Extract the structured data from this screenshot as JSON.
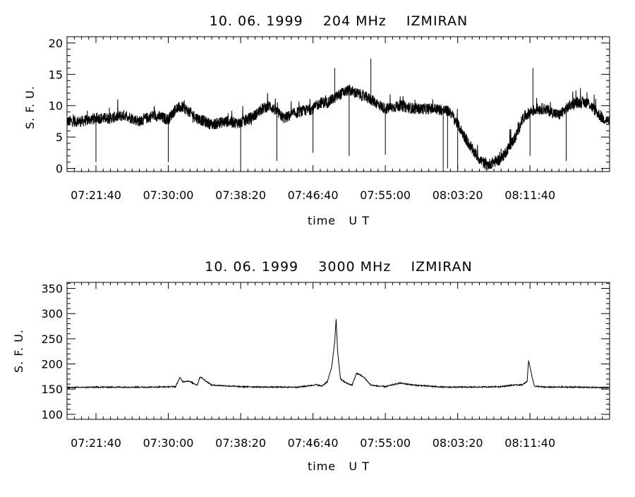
{
  "chart_data": [
    {
      "type": "line",
      "title": "10. 06. 1999    204 MHz    IZMIRAN",
      "xlabel": "time   U T",
      "ylabel": "S. F. U.",
      "x_tick_labels": [
        "07:21:40",
        "07:30:00",
        "07:38:20",
        "07:46:40",
        "07:55:00",
        "08:03:20",
        "08:11:40"
      ],
      "x_tick_seconds": [
        0,
        500,
        1000,
        1500,
        2000,
        2500,
        3000
      ],
      "xlim_seconds": [
        -200,
        3550
      ],
      "y_ticks": [
        0,
        5,
        10,
        15,
        20
      ],
      "y_tick_labels": [
        "0",
        "5",
        "10",
        "15",
        "20"
      ],
      "ylim": [
        -0.5,
        21
      ],
      "line_color": "#000000",
      "grid": false,
      "series": [
        {
          "t": [
            -200,
            -100,
            0,
            100,
            200,
            300,
            400,
            500,
            550,
            600,
            700,
            800,
            900,
            1000,
            1100,
            1150,
            1200,
            1300,
            1400,
            1500,
            1550,
            1600,
            1700,
            1750,
            1800,
            1900,
            2000,
            2100,
            2200,
            2250,
            2300,
            2350,
            2400,
            2450,
            2500,
            2600,
            2650,
            2700,
            2800,
            2900,
            2950,
            3000,
            3050,
            3100,
            3200,
            3300,
            3400,
            3500,
            3550
          ],
          "values": [
            7.5,
            7.5,
            8,
            8,
            8.5,
            7.5,
            8.5,
            7.8,
            9.5,
            9.8,
            8,
            7,
            7.5,
            7.2,
            8.5,
            9.5,
            10,
            8,
            9,
            9.5,
            10.5,
            10.5,
            12,
            12.5,
            12,
            11,
            9.5,
            10,
            9.5,
            9.5,
            9.5,
            9.5,
            9.3,
            9,
            7,
            3,
            1.5,
            0.5,
            1.5,
            5,
            8,
            9,
            9.5,
            9.5,
            8.5,
            10.5,
            10.5,
            8,
            7.5
          ]
        }
      ],
      "spikes": [
        {
          "t": 0,
          "value": 1
        },
        {
          "t": 500,
          "value": 1
        },
        {
          "t": 1000,
          "value": 0.5
        },
        {
          "t": 1250,
          "value": 1.2
        },
        {
          "t": 1500,
          "value": 2.5
        },
        {
          "t": 1650,
          "value": 16
        },
        {
          "t": 1750,
          "value": 2
        },
        {
          "t": 1900,
          "value": 17.5
        },
        {
          "t": 2000,
          "value": 2.2
        },
        {
          "t": 2400,
          "value": 0
        },
        {
          "t": 2430,
          "value": 0
        },
        {
          "t": 2500,
          "value": 0
        },
        {
          "t": 2750,
          "value": 1.5
        },
        {
          "t": 3000,
          "value": 2
        },
        {
          "t": 3020,
          "value": 16
        },
        {
          "t": 3250,
          "value": 1.2
        }
      ]
    },
    {
      "type": "line",
      "title": "10. 06. 1999    3000 MHz    IZMIRAN",
      "xlabel": "time   U T",
      "ylabel": "S. F. U.",
      "x_tick_labels": [
        "07:21:40",
        "07:30:00",
        "07:38:20",
        "07:46:40",
        "07:55:00",
        "08:03:20",
        "08:11:40"
      ],
      "x_tick_seconds": [
        0,
        500,
        1000,
        1500,
        2000,
        2500,
        3000
      ],
      "xlim_seconds": [
        -200,
        3550
      ],
      "y_ticks": [
        100,
        150,
        200,
        250,
        300,
        350
      ],
      "y_tick_labels": [
        "100",
        "150",
        "200",
        "250",
        "300",
        "350"
      ],
      "ylim": [
        90,
        362
      ],
      "line_color": "#000000",
      "grid": false,
      "series": [
        {
          "t": [
            -200,
            0,
            200,
            400,
            550,
            580,
            600,
            640,
            700,
            720,
            760,
            800,
            1000,
            1200,
            1400,
            1480,
            1520,
            1560,
            1600,
            1630,
            1650,
            1660,
            1670,
            1690,
            1710,
            1730,
            1770,
            1800,
            1830,
            1860,
            1900,
            1950,
            2000,
            2100,
            2200,
            2400,
            2600,
            2800,
            2880,
            2950,
            2980,
            2990,
            3010,
            3030,
            3100,
            3300,
            3550
          ],
          "values": [
            153,
            154,
            154,
            154,
            155,
            173,
            165,
            166,
            158,
            175,
            166,
            158,
            155,
            154,
            154,
            157,
            159,
            156,
            165,
            195,
            243,
            290,
            225,
            170,
            166,
            162,
            158,
            181,
            178,
            171,
            158,
            156,
            155,
            162,
            158,
            154,
            154,
            155,
            158,
            159,
            165,
            207,
            180,
            156,
            154,
            154,
            153
          ]
        }
      ]
    }
  ]
}
